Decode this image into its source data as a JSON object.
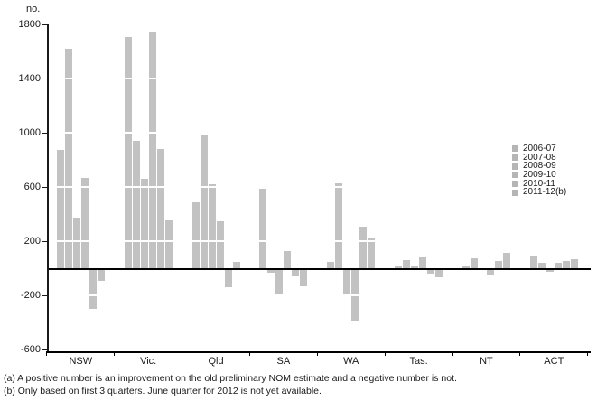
{
  "chart_data": {
    "type": "bar",
    "title": "",
    "unit_label": "no.",
    "categories": [
      "NSW",
      "Vic.",
      "Qld",
      "SA",
      "WA",
      "Tas.",
      "NT",
      "ACT"
    ],
    "series": [
      {
        "name": "2006-07",
        "values": [
          875,
          1710,
          490,
          590,
          45,
          15,
          20,
          90
        ]
      },
      {
        "name": "2007-08",
        "values": [
          1620,
          940,
          980,
          -30,
          630,
          60,
          75,
          40
        ]
      },
      {
        "name": "2008-09",
        "values": [
          375,
          660,
          620,
          -190,
          -195,
          15,
          0,
          -25
        ]
      },
      {
        "name": "2009-10",
        "values": [
          665,
          1750,
          350,
          130,
          -395,
          80,
          -55,
          40
        ]
      },
      {
        "name": "2010-11",
        "values": [
          -300,
          880,
          -140,
          -60,
          310,
          -40,
          55,
          55
        ]
      },
      {
        "name": "2011-12(b)",
        "values": [
          -95,
          355,
          45,
          -130,
          230,
          -65,
          115,
          70
        ]
      }
    ],
    "ylim": [
      -600,
      1800
    ],
    "yticks": [
      1800,
      1400,
      1000,
      600,
      200,
      -200,
      -600
    ],
    "grid": false,
    "legend_position": "right",
    "bar_color": "#c2c2c2",
    "legend_marker_color": "#b5b5b5",
    "axis_color": "#000000"
  },
  "footnotes": [
    "(a) A positive number is an improvement on the old preliminary NOM estimate and a negative number is not.",
    "(b) Only based on first 3 quarters. June quarter for 2012 is not yet available."
  ]
}
